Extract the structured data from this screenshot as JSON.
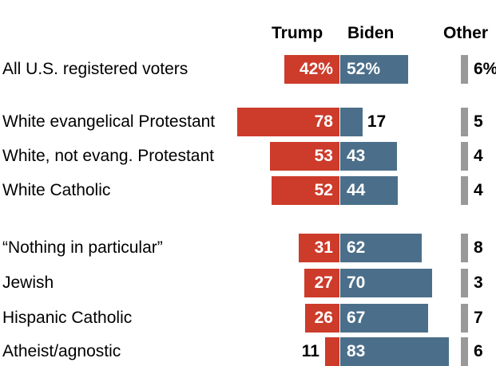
{
  "chart_data": {
    "type": "bar",
    "stacked_diverging": true,
    "series": [
      {
        "name": "Trump",
        "color": "#cd3b2a"
      },
      {
        "name": "Biden",
        "color": "#4b6f8a"
      },
      {
        "name": "Other",
        "color": "#999999"
      }
    ],
    "categories": [
      "All U.S. registered voters",
      "White evangelical Protestant",
      "White, not evang. Protestant",
      "White Catholic",
      "“Nothing in particular”",
      "Jewish",
      "Hispanic Catholic",
      "Atheist/agnostic"
    ],
    "rows": [
      {
        "label": "All U.S. registered voters",
        "trump": 42,
        "biden": 52,
        "other": 6,
        "trump_text": "42%",
        "biden_text": "52%",
        "other_text": "6%"
      },
      {
        "label": "White evangelical Protestant",
        "trump": 78,
        "biden": 17,
        "other": 5,
        "trump_text": "78",
        "biden_text": "17",
        "other_text": "5"
      },
      {
        "label": "White, not evang. Protestant",
        "trump": 53,
        "biden": 43,
        "other": 4,
        "trump_text": "53",
        "biden_text": "43",
        "other_text": "4"
      },
      {
        "label": "White Catholic",
        "trump": 52,
        "biden": 44,
        "other": 4,
        "trump_text": "52",
        "biden_text": "44",
        "other_text": "4"
      },
      {
        "label": "“Nothing in particular”",
        "trump": 31,
        "biden": 62,
        "other": 8,
        "trump_text": "31",
        "biden_text": "62",
        "other_text": "8"
      },
      {
        "label": "Jewish",
        "trump": 27,
        "biden": 70,
        "other": 3,
        "trump_text": "27",
        "biden_text": "70",
        "other_text": "3"
      },
      {
        "label": "Hispanic Catholic",
        "trump": 26,
        "biden": 67,
        "other": 7,
        "trump_text": "26",
        "biden_text": "67",
        "other_text": "7"
      },
      {
        "label": "Atheist/agnostic",
        "trump": 11,
        "biden": 83,
        "other": 6,
        "trump_text": "11",
        "biden_text": "83",
        "other_text": "6"
      }
    ],
    "headers": {
      "trump": "Trump",
      "biden": "Biden",
      "other": "Other"
    },
    "title": "",
    "xlabel": "",
    "ylabel": "",
    "grid": false,
    "legend": "column headers at top"
  }
}
